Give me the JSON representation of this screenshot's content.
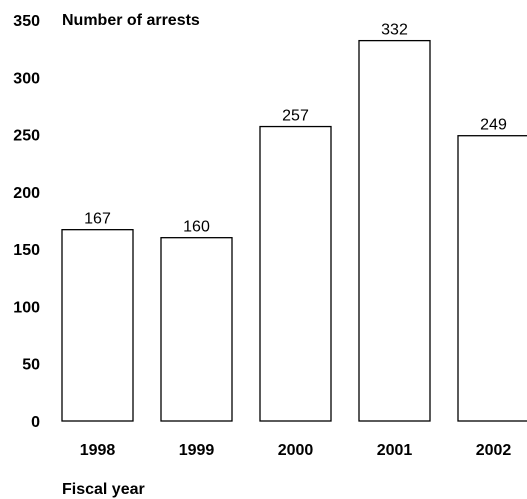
{
  "chart_data": {
    "type": "bar",
    "title": "",
    "ylabel": "Number of arrests",
    "xlabel": "Fiscal year",
    "categories": [
      "1998",
      "1999",
      "2000",
      "2001",
      "2002"
    ],
    "values": [
      167,
      160,
      257,
      332,
      249
    ],
    "data_labels": [
      "167",
      "160",
      "257",
      "332",
      "249"
    ],
    "ylim": [
      0,
      350
    ],
    "yticks": [
      0,
      50,
      100,
      150,
      200,
      250,
      300,
      350
    ],
    "ytick_labels": [
      "0",
      "50",
      "100",
      "150",
      "200",
      "250",
      "300",
      "350"
    ],
    "grid": false,
    "legend": "none",
    "colors": {
      "bar_fill": "#ffffff",
      "bar_stroke": "#000000",
      "text": "#000000"
    }
  }
}
